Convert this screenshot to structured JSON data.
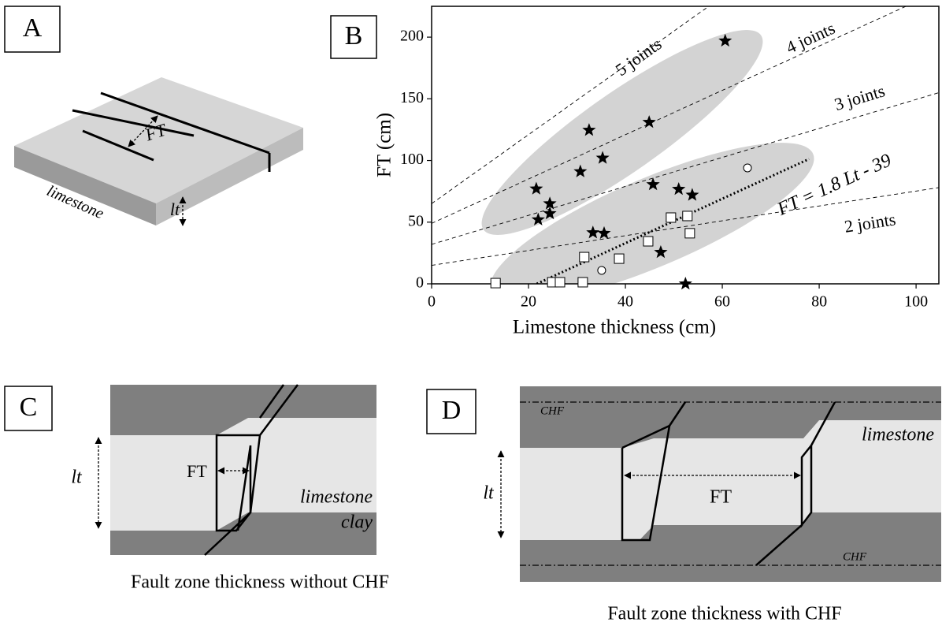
{
  "panel_a": {
    "label": "A",
    "ft": "FT",
    "rock": "limestone",
    "thickness": "lt"
  },
  "chart_data": {
    "type": "scatter",
    "panel_label": "B",
    "x_label": "Limestone thickness (cm)",
    "y_label": "FT (cm)",
    "xlim": [
      0,
      104.7
    ],
    "ylim": [
      0,
      225
    ],
    "xticks": [
      0,
      20,
      40,
      60,
      80,
      100
    ],
    "yticks": [
      0,
      50,
      100,
      150,
      200
    ],
    "series": [
      {
        "marker": "star",
        "color": "#000000",
        "x": [
          60.6,
          32.5,
          44.9,
          30.7,
          35.3,
          21.6,
          24.4,
          24.4,
          22,
          45.7,
          51,
          53.8,
          33.3,
          35.6,
          47.3,
          52.4
        ],
        "values": [
          197,
          124.6,
          131,
          91,
          102,
          77,
          65,
          57,
          52,
          80.5,
          76.7,
          72,
          41.5,
          41,
          25.6,
          0
        ]
      },
      {
        "marker": "square",
        "color": "#ffffff",
        "x": [
          13.2,
          24.9,
          26.5,
          31.2,
          31.5,
          38.7,
          44.7,
          49.4,
          52.8,
          53.3
        ],
        "values": [
          0.6,
          1.3,
          1.3,
          1.3,
          21.7,
          20.4,
          34.5,
          53.7,
          55,
          41
        ]
      },
      {
        "marker": "circle",
        "color": "#ffffff",
        "x": [
          65.2,
          35.1
        ],
        "values": [
          94,
          10.9
        ]
      }
    ],
    "fit_line": {
      "label": "FT = 1.8 Lt - 39",
      "x": [
        21.7,
        77.9
      ],
      "values": [
        0,
        101.2
      ]
    },
    "reference_lines": [
      {
        "label": "5 joints",
        "x": [
          0,
          57.2
        ],
        "values": [
          65,
          225
        ]
      },
      {
        "label": "4 joints",
        "x": [
          0,
          97.9
        ],
        "values": [
          49,
          225
        ]
      },
      {
        "label": "3 joints",
        "x": [
          0,
          104.7
        ],
        "values": [
          32,
          155
        ]
      },
      {
        "label": "2 joints",
        "x": [
          0,
          104.7
        ],
        "values": [
          15,
          78
        ]
      }
    ]
  },
  "panel_c": {
    "label": "C",
    "ft": "FT",
    "thickness": "lt",
    "upper_rock": "limestone",
    "lower_rock": "clay",
    "caption": "Fault zone thickness without CHF"
  },
  "panel_d": {
    "label": "D",
    "ft": "FT",
    "thickness": "lt",
    "rock": "limestone",
    "top_fault": "CHF",
    "bottom_fault": "CHF",
    "caption": "Fault zone thickness with CHF"
  }
}
